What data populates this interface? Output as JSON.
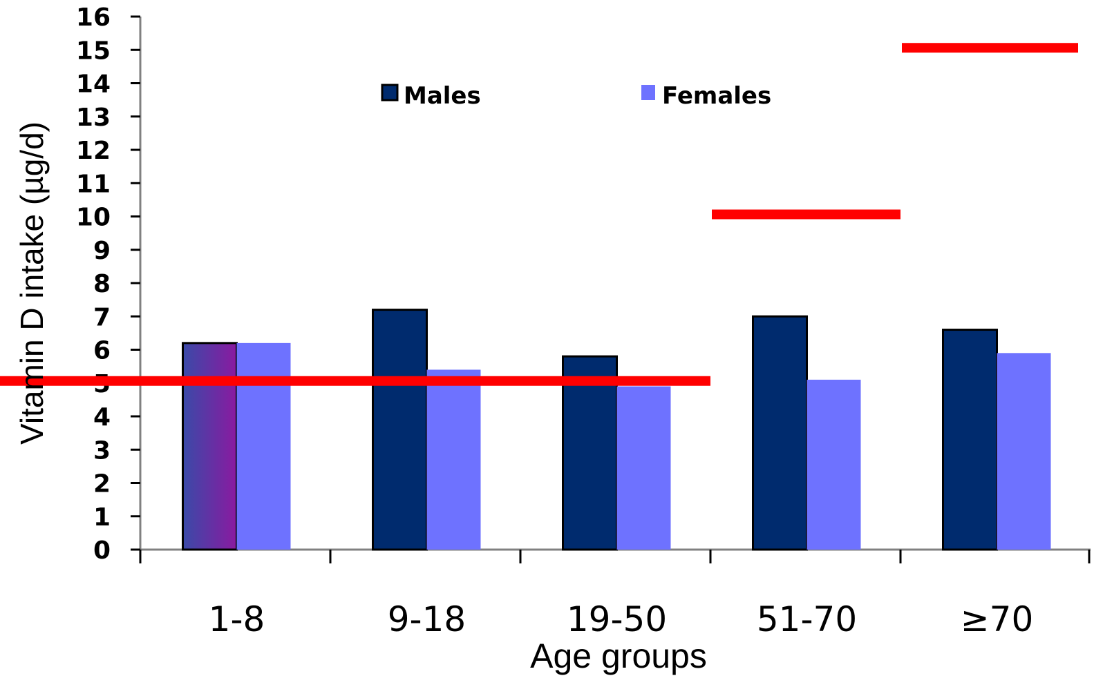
{
  "chart_data": {
    "type": "bar",
    "title": "",
    "xlabel": "Age groups",
    "ylabel": "Vitamin D intake (µg/d)",
    "categories": [
      "1-8",
      "9-18",
      "19-50",
      "51-70",
      "≥70"
    ],
    "series": [
      {
        "name": "Males",
        "values": [
          6.2,
          7.2,
          5.8,
          7.0,
          6.6
        ],
        "color": "#002b6e"
      },
      {
        "name": "Females",
        "values": [
          6.2,
          5.4,
          4.9,
          5.1,
          5.9
        ],
        "color": "#6e72ff"
      }
    ],
    "reference_lines": [
      {
        "value": 5,
        "from_category": "1-8",
        "to_category": "19-50",
        "color": "#ff0000"
      },
      {
        "value": 10,
        "from_category": "51-70",
        "to_category": "51-70",
        "color": "#ff0000"
      },
      {
        "value": 15,
        "from_category": "≥70",
        "to_category": "≥70",
        "color": "#ff0000"
      }
    ],
    "y_ticks": [
      "0",
      "1",
      "2",
      "3",
      "4",
      "5",
      "6",
      "7",
      "8",
      "9",
      "10",
      "11",
      "12",
      "13",
      "14",
      "15",
      "16"
    ],
    "ylim": [
      0,
      16
    ],
    "grid": false,
    "legend_position": "top",
    "highlight_gradient": [
      "#3a4aa8",
      "#8a1aa0"
    ]
  }
}
